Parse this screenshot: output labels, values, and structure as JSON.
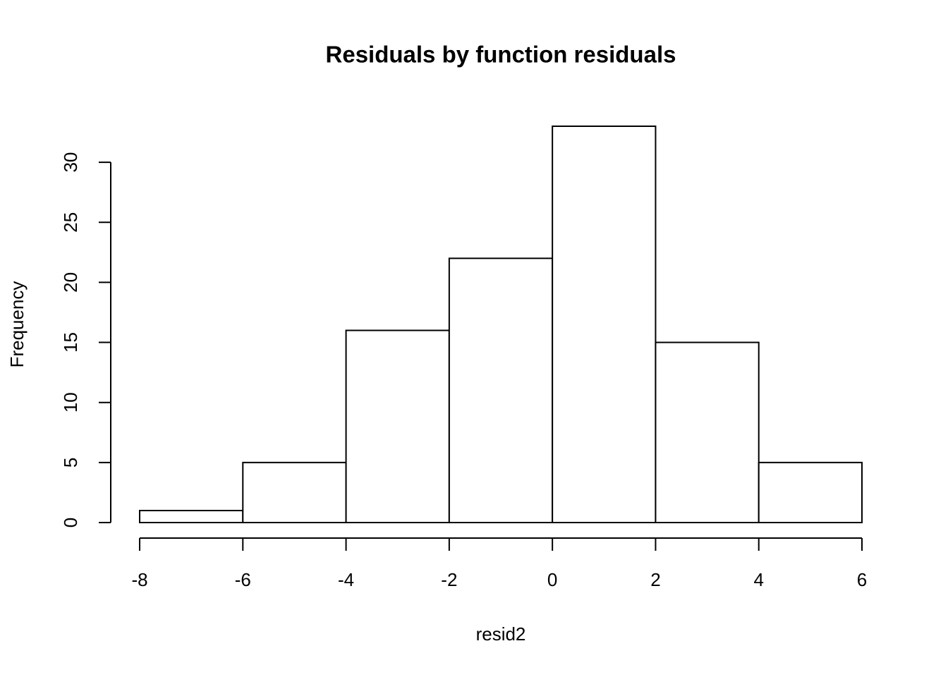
{
  "chart_data": {
    "type": "histogram",
    "title": "Residuals by function residuals",
    "x_label": "resid2",
    "y_label": "Frequency",
    "bins": [
      -8,
      -6,
      -4,
      -2,
      0,
      2,
      4,
      6
    ],
    "values": [
      1,
      5,
      16,
      22,
      33,
      15,
      5
    ],
    "color": "#ffffff",
    "edgecolor": "#000000",
    "xlim": [
      -8,
      6
    ],
    "xticks": [
      -8,
      -6,
      -4,
      -2,
      0,
      2,
      4,
      6
    ],
    "ylim": [
      0,
      33
    ],
    "yticks": [
      0,
      5,
      10,
      15,
      20,
      25,
      30
    ],
    "grid": false
  }
}
